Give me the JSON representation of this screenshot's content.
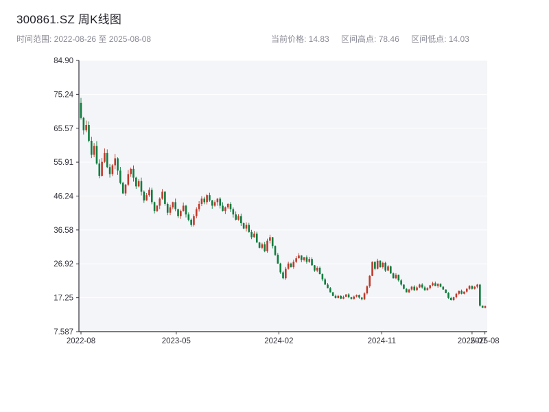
{
  "header": {
    "title": "300861.SZ 周K线图",
    "time_range_label": "时间范围: 2022-08-26 至 2025-08-08",
    "stats": [
      "当前价格: 14.83",
      "区间高点: 78.46",
      "区间低点: 14.03"
    ],
    "current_price": "14.83",
    "range_high": "78.46",
    "range_low": "14.03"
  },
  "chart_data": {
    "type": "candlestick",
    "title": "300861.SZ 周K线图",
    "period": "weekly",
    "time_range": [
      "2022-08-26",
      "2025-08-08"
    ],
    "ylim": [
      7.587,
      84.9
    ],
    "y_ticks": [
      "84.90",
      "75.24",
      "65.57",
      "55.91",
      "46.24",
      "36.58",
      "26.92",
      "17.25",
      "7.587"
    ],
    "x_ticks": [
      {
        "label": "2022-08",
        "week": 0
      },
      {
        "label": "2023-05",
        "week": 36.3
      },
      {
        "label": "2024-02",
        "week": 75.4
      },
      {
        "label": "2024-11",
        "week": 114.6
      },
      {
        "label": "2025-07",
        "week": 149.0
      },
      {
        "label": "2025-08",
        "week": 153.9
      }
    ],
    "first_open": 72.8,
    "closes": [
      68.5,
      65.0,
      66.5,
      62.0,
      58.0,
      60.5,
      55.5,
      52.0,
      56.0,
      58.5,
      54.5,
      52.5,
      55.0,
      57.0,
      53.5,
      50.0,
      47.0,
      49.5,
      52.5,
      54.0,
      51.5,
      49.0,
      50.5,
      47.5,
      45.0,
      46.5,
      48.0,
      44.5,
      42.0,
      43.5,
      45.5,
      47.5,
      44.0,
      41.5,
      43.0,
      44.5,
      42.5,
      40.5,
      42.0,
      43.5,
      41.0,
      39.5,
      38.0,
      40.5,
      42.5,
      44.0,
      45.5,
      44.5,
      46.5,
      45.0,
      43.5,
      44.5,
      45.5,
      43.5,
      42.0,
      43.0,
      44.0,
      42.5,
      41.0,
      39.5,
      40.5,
      38.5,
      37.0,
      38.0,
      36.0,
      34.5,
      35.5,
      33.0,
      31.5,
      32.5,
      30.5,
      33.5,
      34.5,
      32.0,
      29.5,
      27.0,
      24.5,
      22.8,
      25.5,
      27.0,
      26.0,
      27.5,
      28.5,
      29.3,
      28.0,
      28.8,
      27.5,
      28.3,
      26.5,
      25.0,
      25.8,
      24.0,
      22.5,
      21.0,
      20.0,
      18.8,
      17.8,
      17.2,
      17.8,
      17.0,
      17.5,
      18.2,
      17.4,
      16.9,
      17.6,
      18.0,
      17.3,
      16.8,
      18.5,
      20.5,
      23.5,
      27.5,
      25.5,
      27.8,
      26.0,
      27.2,
      25.0,
      26.2,
      24.2,
      22.8,
      23.8,
      22.2,
      21.0,
      19.8,
      18.8,
      19.6,
      20.4,
      19.4,
      20.2,
      21.0,
      20.2,
      19.4,
      20.0,
      20.8,
      21.4,
      20.6,
      21.2,
      20.4,
      19.6,
      18.6,
      17.2,
      16.6,
      17.4,
      18.4,
      19.2,
      18.4,
      19.0,
      19.8,
      20.6,
      19.8,
      20.4,
      21.0,
      15.0,
      14.4,
      14.83
    ],
    "colors": {
      "up": "#c0392b",
      "down": "#0e7d3e",
      "plot_bg": "#f4f5f8",
      "grid": "#ffffff",
      "axis": "#2f2f38",
      "tick_text": "#33333d"
    },
    "legend_position": "none",
    "grid": "horizontal"
  }
}
